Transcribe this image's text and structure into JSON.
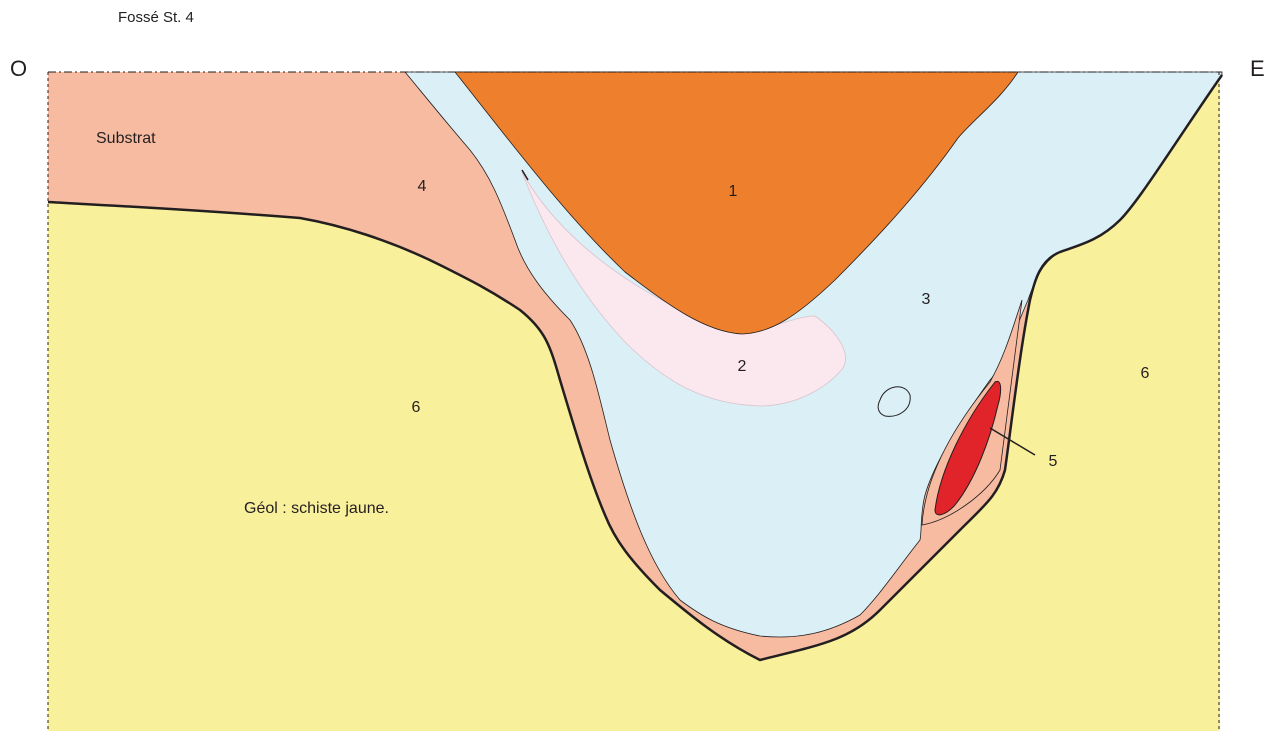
{
  "title": "Fossé St. 4",
  "orientation": {
    "west": "O",
    "east": "E"
  },
  "labels": [
    "Substrat",
    "4",
    "1",
    "2",
    "3",
    "5",
    "6",
    "6",
    "Géol : schiste jaune."
  ]
}
